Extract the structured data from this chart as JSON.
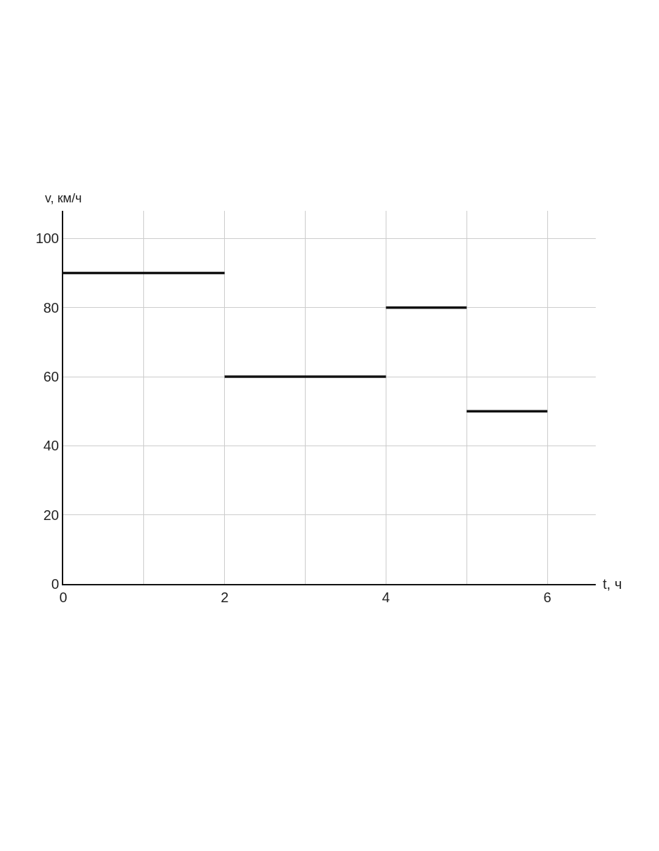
{
  "chart_data": {
    "type": "line",
    "xlabel": "t, ч",
    "ylabel": "v, км/ч",
    "series": [
      {
        "color": "#111111",
        "x": [
          0,
          2
        ],
        "values": [
          90,
          90
        ]
      },
      {
        "color": "#111111",
        "x": [
          2,
          4
        ],
        "values": [
          60,
          60
        ]
      },
      {
        "color": "#111111",
        "x": [
          4,
          5
        ],
        "values": [
          80,
          80
        ]
      },
      {
        "color": "#111111",
        "x": [
          5,
          6
        ],
        "values": [
          50,
          50
        ]
      }
    ],
    "xlim": [
      0,
      6.6
    ],
    "ylim": [
      0,
      108
    ],
    "xticks": [
      0,
      {
        "value": 1,
        "label": null
      },
      2,
      {
        "value": 3,
        "label": null
      },
      4,
      {
        "value": 5,
        "label": null
      },
      6
    ],
    "yticks": [
      0,
      20,
      40,
      60,
      80,
      100
    ],
    "grid": true,
    "marker": "none",
    "line_style": "solid"
  }
}
